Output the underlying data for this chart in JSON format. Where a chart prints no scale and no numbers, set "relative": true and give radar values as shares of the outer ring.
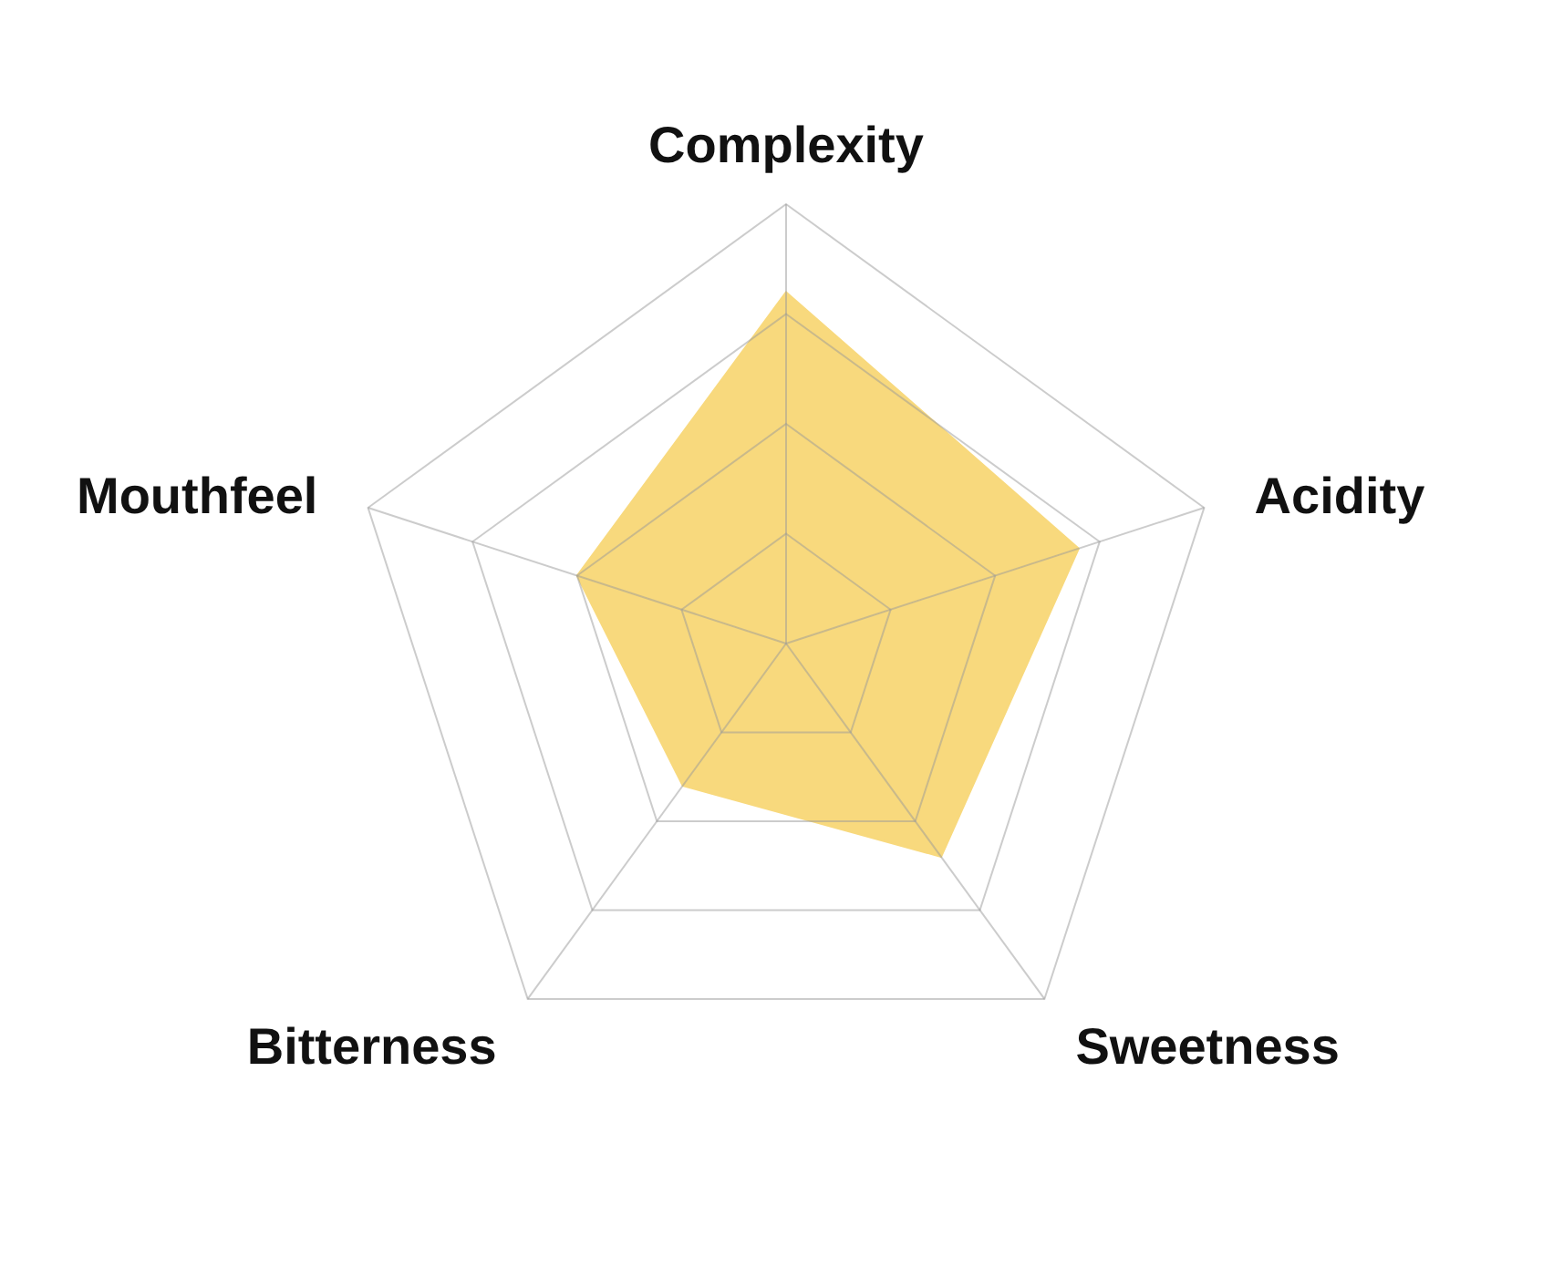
{
  "chart_data": {
    "type": "radar",
    "categories": [
      "Complexity",
      "Acidity",
      "Sweetness",
      "Bitterness",
      "Mouthfeel"
    ],
    "relative": true,
    "grid": true,
    "series": [
      {
        "color": "#f8d97d",
        "values": [
          0.8,
          0.7,
          0.6,
          0.4,
          0.5
        ]
      }
    ]
  }
}
